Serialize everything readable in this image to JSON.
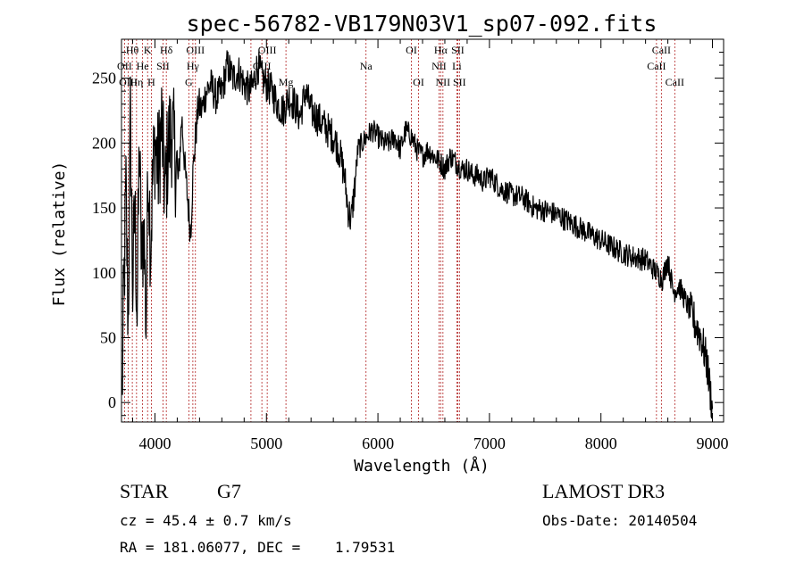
{
  "chart_data": {
    "type": "line",
    "title": "spec-56782-VB179N03V1_sp07-092.fits",
    "xlabel": "Wavelength (Å)",
    "ylabel": "Flux (relative)",
    "xlim": [
      3700,
      9100
    ],
    "ylim": [
      -15,
      280
    ],
    "xticks": [
      4000,
      5000,
      6000,
      7000,
      8000,
      9000
    ],
    "xtick_labels": [
      "4000",
      "5000",
      "6000",
      "7000",
      "8000",
      "9000"
    ],
    "yticks": [
      0,
      50,
      100,
      150,
      200,
      250
    ],
    "ytick_labels": [
      "0",
      "50",
      "100",
      "150",
      "200",
      "250"
    ],
    "line_color": "#000000",
    "marker_color": "#b22222",
    "series": [
      {
        "name": "flux",
        "x": [
          3705,
          3720,
          3740,
          3760,
          3780,
          3800,
          3820,
          3840,
          3860,
          3880,
          3900,
          3920,
          3940,
          3960,
          3980,
          4000,
          4030,
          4060,
          4090,
          4120,
          4150,
          4180,
          4210,
          4240,
          4270,
          4300,
          4320,
          4340,
          4360,
          4390,
          4420,
          4460,
          4500,
          4550,
          4600,
          4650,
          4700,
          4750,
          4800,
          4850,
          4880,
          4920,
          4960,
          5000,
          5050,
          5100,
          5150,
          5200,
          5250,
          5300,
          5350,
          5400,
          5450,
          5500,
          5550,
          5600,
          5650,
          5700,
          5730,
          5760,
          5790,
          5820,
          5860,
          5900,
          5950,
          6000,
          6050,
          6100,
          6150,
          6200,
          6250,
          6300,
          6350,
          6400,
          6450,
          6500,
          6560,
          6600,
          6650,
          6700,
          6750,
          6800,
          6850,
          6900,
          6950,
          7000,
          7100,
          7200,
          7300,
          7400,
          7500,
          7600,
          7700,
          7800,
          7900,
          8000,
          8100,
          8200,
          8300,
          8400,
          8500,
          8550,
          8600,
          8650,
          8700,
          8750,
          8800,
          8850,
          8900,
          8950,
          9000
        ],
        "y": [
          5,
          80,
          160,
          60,
          220,
          90,
          150,
          70,
          200,
          100,
          140,
          60,
          190,
          120,
          170,
          200,
          180,
          215,
          160,
          200,
          210,
          190,
          170,
          220,
          180,
          150,
          130,
          175,
          200,
          230,
          225,
          240,
          245,
          235,
          240,
          260,
          250,
          255,
          245,
          240,
          245,
          260,
          250,
          245,
          240,
          230,
          225,
          235,
          230,
          220,
          240,
          225,
          220,
          215,
          210,
          205,
          195,
          175,
          150,
          140,
          165,
          195,
          200,
          205,
          210,
          205,
          200,
          200,
          205,
          195,
          210,
          205,
          195,
          190,
          195,
          190,
          185,
          180,
          190,
          185,
          180,
          180,
          175,
          175,
          170,
          175,
          165,
          160,
          158,
          150,
          148,
          145,
          140,
          135,
          130,
          125,
          120,
          115,
          112,
          110,
          100,
          95,
          110,
          85,
          90,
          80,
          70,
          60,
          50,
          30,
          -5
        ]
      }
    ],
    "lines": [
      {
        "label": "Hθ",
        "x": 3797,
        "row": 1
      },
      {
        "label": "OII",
        "x": 3727,
        "row": 2
      },
      {
        "label": "OIII",
        "x": 3760,
        "row": 3
      },
      {
        "label": "He",
        "x": 3889,
        "row": 2
      },
      {
        "label": "K",
        "x": 3934,
        "row": 1
      },
      {
        "label": "Hη",
        "x": 3835,
        "row": 3
      },
      {
        "label": "H",
        "x": 3968,
        "row": 3
      },
      {
        "label": "SII",
        "x": 4072,
        "row": 2
      },
      {
        "label": "Hδ",
        "x": 4102,
        "row": 1
      },
      {
        "label": "OIII",
        "x": 4363,
        "row": 1
      },
      {
        "label": "Hγ",
        "x": 4340,
        "row": 2
      },
      {
        "label": "G",
        "x": 4304,
        "row": 3
      },
      {
        "label": "OIII",
        "x": 5007,
        "row": 1
      },
      {
        "label": "OIII",
        "x": 4959,
        "row": 2
      },
      {
        "label": "Hβ",
        "x": 4861,
        "row": 3
      },
      {
        "label": "Mg",
        "x": 5175,
        "row": 3
      },
      {
        "label": "Na",
        "x": 5893,
        "row": 2
      },
      {
        "label": "OI",
        "x": 6300,
        "row": 1
      },
      {
        "label": "OI",
        "x": 6364,
        "row": 3
      },
      {
        "label": "Hα",
        "x": 6563,
        "row": 1
      },
      {
        "label": "NII",
        "x": 6548,
        "row": 2
      },
      {
        "label": "NII",
        "x": 6583,
        "row": 3
      },
      {
        "label": "SII",
        "x": 6716,
        "row": 1
      },
      {
        "label": "Li",
        "x": 6708,
        "row": 2
      },
      {
        "label": "SII",
        "x": 6731,
        "row": 3
      },
      {
        "label": "CaII",
        "x": 8542,
        "row": 1
      },
      {
        "label": "CaII",
        "x": 8498,
        "row": 2
      },
      {
        "label": "CaII",
        "x": 8662,
        "row": 3
      }
    ]
  },
  "info": {
    "object_class": "STAR",
    "subclass": "G7",
    "survey": "LAMOST DR3",
    "redshift": "cz = 45.4 ± 0.7 km/s",
    "obs_date": "Obs-Date: 20140504",
    "coords": "RA = 181.06077, DEC =    1.79531"
  }
}
